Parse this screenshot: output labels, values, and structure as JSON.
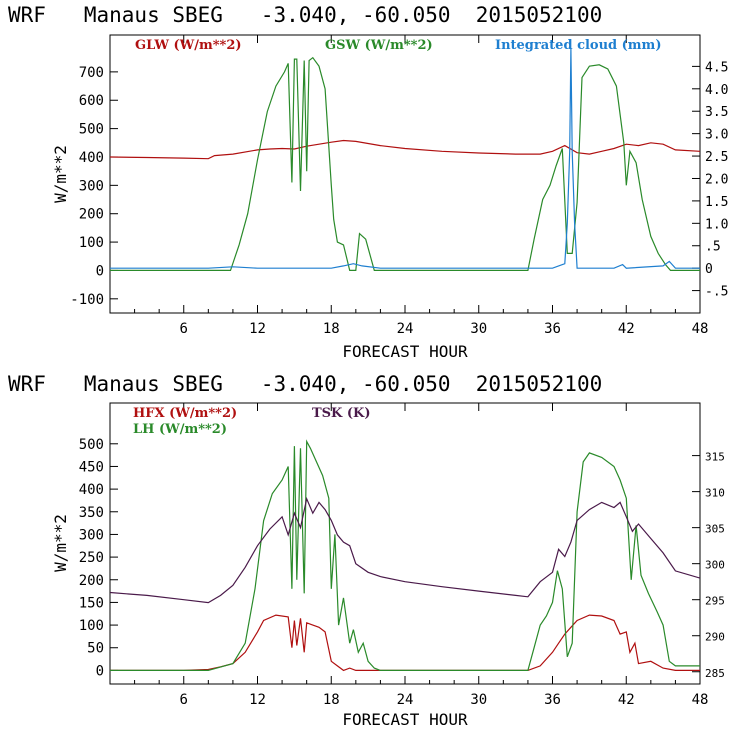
{
  "chart_data": [
    {
      "type": "line",
      "title": "WRF   Manaus SBEG   -3.040, -60.050  2015052100",
      "xlabel": "FORECAST HOUR",
      "ylabel": "W/m**2",
      "xlim": [
        0,
        48
      ],
      "ylim": [
        -150,
        830
      ],
      "xticks": [
        6,
        12,
        18,
        24,
        30,
        36,
        42,
        48
      ],
      "yticks": [
        -100,
        0,
        100,
        200,
        300,
        400,
        500,
        600,
        700
      ],
      "y2lim": [
        -1.0,
        5.2
      ],
      "y2ticks": [
        -0.5,
        0,
        0.5,
        1.0,
        1.5,
        2.0,
        2.5,
        3.0,
        3.5,
        4.0,
        4.5
      ],
      "y2ticklabels": [
        "-.5",
        "0",
        ".5",
        "1.0",
        "1.5",
        "2.0",
        "2.5",
        "3.0",
        "3.5",
        "4.0",
        "4.5"
      ],
      "legend_placement": "top",
      "series": [
        {
          "name": "GLW (W/m**2)",
          "color": "#b01010",
          "axis": "left",
          "x": [
            0,
            3,
            6,
            8,
            8.5,
            10,
            12,
            13,
            14,
            15,
            16,
            17,
            18,
            19,
            20,
            22,
            24,
            27,
            30,
            33,
            35,
            36,
            37,
            38,
            39,
            40,
            41,
            42,
            43,
            44,
            45,
            46,
            48
          ],
          "y": [
            400,
            398,
            396,
            394,
            405,
            410,
            425,
            428,
            430,
            428,
            438,
            445,
            452,
            458,
            455,
            440,
            430,
            420,
            414,
            410,
            410,
            420,
            440,
            415,
            410,
            420,
            430,
            445,
            440,
            450,
            445,
            425,
            420
          ]
        },
        {
          "name": "GSW (W/m**2)",
          "color": "#2a8a2a",
          "axis": "left",
          "x": [
            0,
            9.8,
            10.5,
            11.2,
            12,
            12.8,
            13.5,
            14.2,
            14.5,
            14.8,
            15.0,
            15.2,
            15.5,
            15.8,
            16.0,
            16.2,
            16.5,
            17.0,
            17.5,
            18.0,
            18.2,
            18.5,
            19.0,
            19.5,
            20.0,
            20.3,
            20.8,
            21.5,
            22,
            34,
            34.5,
            35.2,
            35.8,
            36.3,
            36.8,
            37.2,
            37.6,
            38.0,
            38.4,
            39.0,
            39.8,
            40.5,
            41.2,
            41.8,
            42.0,
            42.3,
            42.8,
            43.3,
            44.0,
            44.6,
            45.2,
            45.6,
            48
          ],
          "y": [
            0,
            0,
            90,
            200,
            390,
            560,
            650,
            700,
            730,
            310,
            745,
            745,
            280,
            740,
            350,
            740,
            750,
            720,
            640,
            300,
            180,
            100,
            90,
            0,
            0,
            130,
            110,
            0,
            0,
            0,
            110,
            250,
            300,
            370,
            430,
            60,
            60,
            240,
            680,
            720,
            725,
            710,
            650,
            450,
            300,
            420,
            380,
            250,
            120,
            60,
            20,
            0,
            0
          ]
        },
        {
          "name": "Integrated cloud (mm)",
          "color": "#1e7fd0",
          "axis": "right",
          "x": [
            0,
            8,
            10,
            12,
            18,
            19,
            19.8,
            20.5,
            22,
            36,
            37,
            37.2,
            37.4,
            37.5,
            37.6,
            37.8,
            38,
            41,
            41.7,
            42,
            45,
            45.5,
            46,
            48
          ],
          "y": [
            0,
            0,
            0.03,
            0,
            0,
            0.05,
            0.1,
            0.05,
            0,
            0,
            0.1,
            1.0,
            2.6,
            4.9,
            2.6,
            1.0,
            0,
            0,
            0.08,
            0,
            0.05,
            0.15,
            0,
            0
          ]
        }
      ]
    },
    {
      "type": "line",
      "title": "WRF   Manaus SBEG   -3.040, -60.050  2015052100",
      "xlabel": "FORECAST HOUR",
      "ylabel": "W/m**2",
      "xlim": [
        0,
        48
      ],
      "ylim": [
        -30,
        590
      ],
      "xticks": [
        6,
        12,
        18,
        24,
        30,
        36,
        42,
        48
      ],
      "yticks": [
        0,
        50,
        100,
        150,
        200,
        250,
        300,
        350,
        400,
        450,
        500
      ],
      "y2lim": [
        283.3,
        322.3
      ],
      "y2ticks": [
        285,
        290,
        295,
        300,
        305,
        310,
        315
      ],
      "y2ticklabels": [
        "285",
        "290",
        "295",
        "300",
        "305",
        "310",
        "315"
      ],
      "legend_placement": "top-left",
      "series": [
        {
          "name": "HFX (W/m**2)",
          "color": "#b01010",
          "axis": "left",
          "x": [
            0,
            6,
            8,
            9,
            10,
            11,
            12,
            12.5,
            13.5,
            14.5,
            14.8,
            15.0,
            15.2,
            15.5,
            15.8,
            16.0,
            16.5,
            17.0,
            17.5,
            18.0,
            18.5,
            19.0,
            19.5,
            20,
            21,
            22,
            34,
            35,
            36,
            36.5,
            37,
            37.5,
            38,
            39,
            40,
            41,
            41.5,
            42,
            42.3,
            42.7,
            43,
            44,
            45,
            46,
            48
          ],
          "y": [
            0,
            0,
            2,
            8,
            15,
            40,
            85,
            110,
            122,
            118,
            50,
            110,
            55,
            115,
            40,
            105,
            100,
            95,
            85,
            20,
            10,
            0,
            5,
            0,
            0,
            0,
            0,
            10,
            40,
            60,
            80,
            95,
            110,
            122,
            120,
            110,
            80,
            85,
            40,
            60,
            15,
            20,
            5,
            0,
            0
          ]
        },
        {
          "name": "LH  (W/m**2)",
          "color": "#2a8a2a",
          "axis": "left",
          "x": [
            0,
            8,
            10,
            11,
            11.8,
            12.5,
            13.2,
            14.0,
            14.5,
            14.8,
            15.0,
            15.2,
            15.5,
            15.8,
            16.0,
            16.3,
            16.8,
            17.3,
            17.8,
            18.0,
            18.3,
            18.6,
            19.0,
            19.5,
            19.8,
            20.2,
            20.6,
            21.0,
            21.5,
            22,
            34,
            34.5,
            35.0,
            35.5,
            36.0,
            36.4,
            36.8,
            37.2,
            37.6,
            38.0,
            38.5,
            39.0,
            40.0,
            41.0,
            41.5,
            42.0,
            42.4,
            42.8,
            43.2,
            43.8,
            44.5,
            45.0,
            45.5,
            46,
            48
          ],
          "y": [
            0,
            0,
            15,
            60,
            180,
            330,
            390,
            420,
            450,
            180,
            495,
            200,
            490,
            170,
            505,
            490,
            460,
            430,
            380,
            180,
            300,
            100,
            160,
            60,
            90,
            40,
            60,
            20,
            5,
            0,
            0,
            50,
            100,
            120,
            150,
            220,
            180,
            30,
            60,
            350,
            460,
            480,
            470,
            450,
            420,
            380,
            200,
            320,
            210,
            170,
            130,
            100,
            20,
            10,
            10
          ]
        },
        {
          "name": "TSK (K)",
          "color": "#4a1a4a",
          "axis": "right",
          "x": [
            0,
            3,
            6,
            8,
            9,
            10,
            11,
            12,
            13,
            14,
            14.5,
            15,
            15.5,
            16,
            16.5,
            17,
            17.5,
            18,
            18.5,
            19,
            19.5,
            20,
            21,
            22,
            24,
            27,
            30,
            33,
            34,
            35,
            36,
            36.5,
            37,
            37.5,
            38,
            39,
            40,
            41,
            41.5,
            42,
            42.5,
            43,
            44,
            45,
            46,
            48
          ],
          "y": [
            296.0,
            295.6,
            295.0,
            294.6,
            295.6,
            297.0,
            299.5,
            302.5,
            304.8,
            306.5,
            304.0,
            307.0,
            305.0,
            309.0,
            307.0,
            308.5,
            307.5,
            306.0,
            304.0,
            303.0,
            302.5,
            300.0,
            298.8,
            298.2,
            297.5,
            296.8,
            296.2,
            295.6,
            295.4,
            297.5,
            298.8,
            302.0,
            301.0,
            303.0,
            306.0,
            307.5,
            308.5,
            307.8,
            308.5,
            306.5,
            304.5,
            305.5,
            303.5,
            301.5,
            299.0,
            298.0
          ]
        }
      ]
    }
  ]
}
